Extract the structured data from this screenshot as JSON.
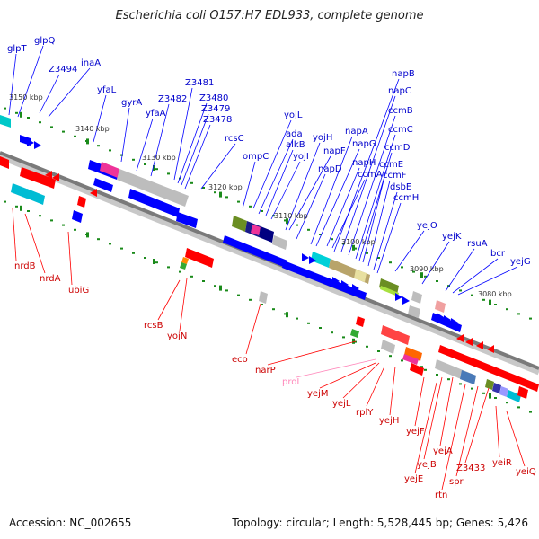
{
  "title": "Escherichia coli O157:H7 EDL933, complete genome",
  "footer": {
    "accession": "Accession: NC_002655",
    "topology": "Topology: circular; Length: 5,528,445 bp; Genes: 5,426"
  },
  "colors": {
    "forward": "#0000ff",
    "reverse": "#ff0000",
    "backbone": "#7a7a7a",
    "tick": "#1a8a1a",
    "forward_label": "#0000cc",
    "reverse_label": "#cc0000",
    "pseudo_label": "#ff88bb"
  },
  "ticks": [
    "3150 kbp",
    "3140 kbp",
    "3130 kbp",
    "3120 kbp",
    "3110 kbp",
    "3100 kbp",
    "3090 kbp",
    "3080 kbp"
  ],
  "forward_genes": [
    "glpT",
    "glpQ",
    "Z3494",
    "inaA",
    "yfaL",
    "gyrA",
    "yfaA",
    "Z3482",
    "Z3481",
    "Z3480",
    "Z3479",
    "Z3478",
    "rcsC",
    "ompC",
    "yojL",
    "ada",
    "alkB",
    "yojI",
    "yojH",
    "napF",
    "napD",
    "napA",
    "napG",
    "napH",
    "ccmA",
    "napB",
    "napC",
    "ccmB",
    "ccmC",
    "ccmD",
    "ccmE",
    "ccmF",
    "dsbE",
    "ccmH",
    "yejO",
    "yejK",
    "rsuA",
    "bcr",
    "yejG"
  ],
  "reverse_genes": [
    "nrdB",
    "nrdA",
    "ubiG",
    "rcsB",
    "yojN",
    "eco",
    "narP",
    "proL",
    "yejM",
    "yejL",
    "rplY",
    "yejH",
    "yejF",
    "yejB",
    "yejA",
    "yejE",
    "rtn",
    "spr",
    "Z3433",
    "yeiR",
    "yeiQ"
  ]
}
